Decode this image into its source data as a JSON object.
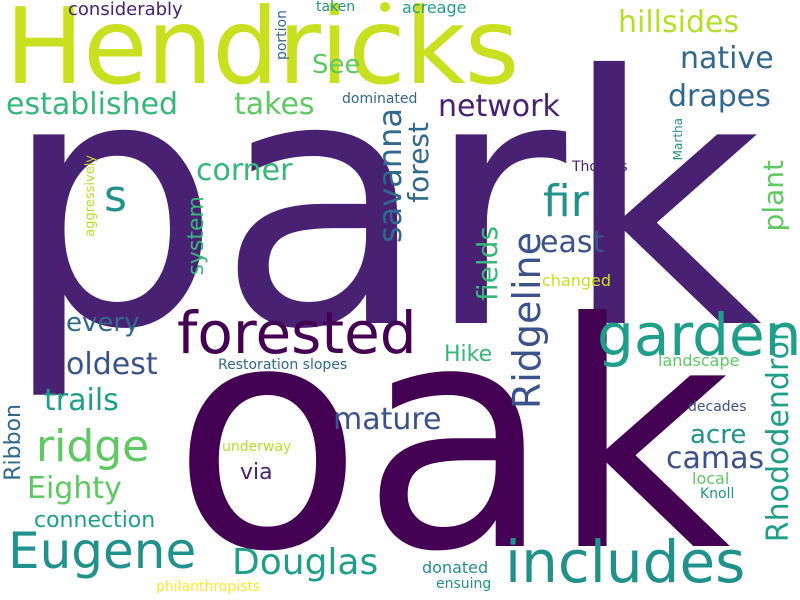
{
  "words": {
    "park": "park",
    "oak": "oak",
    "hendricks": "Hendricks",
    "forested": "forested",
    "garden": "garden",
    "includes": "includes",
    "eugene": "Eugene",
    "ridgeline": "Ridgeline",
    "savanna": "savanna",
    "ridge": "ridge",
    "rhododendron": "Rhododendron",
    "douglas": "Douglas",
    "fir": "fir",
    "established": "established",
    "s": "s",
    "network": "network",
    "hillsides": "hillsides",
    "native": "native",
    "drapes": "drapes",
    "takes": "takes",
    "corner": "corner",
    "forest": "forest",
    "east": "east",
    "plant": "plant",
    "mature": "mature",
    "oldest": "oldest",
    "trails": "trails",
    "eighty": "Eighty",
    "camas": "camas",
    "acre": "acre",
    "fields": "fields",
    "every": "every",
    "system": "system",
    "hike": "Hike",
    "connection": "connection",
    "via": "via",
    "see": "See",
    "ribbon": "Ribbon",
    "considerably": "considerably",
    "taken": "taken",
    "acreage": "acreage",
    "portion": "portion",
    "dominated": "dominated",
    "thomas": "Thomas",
    "martha": "Martha",
    "aggressively": "aggressively",
    "changed": "changed",
    "landscape": "landscape",
    "restoration": "Restoration",
    "slopes": "slopes",
    "decades": "decades",
    "underway": "underway",
    "local": "local",
    "knoll": "Knoll",
    "donated": "donated",
    "ensuing": "ensuing",
    "philanthropists": "philanthropists"
  },
  "colors": {
    "dark_purple": "#440154",
    "indigo": "#482173",
    "slate_blue": "#3b528b",
    "steel_blue": "#31688e",
    "teal_blue": "#21918c",
    "teal": "#1f9e89",
    "sea_green": "#35b779",
    "green": "#5ec962",
    "lime": "#b5de2b",
    "yellow_green": "#c8e020",
    "yellow": "#fde725"
  }
}
